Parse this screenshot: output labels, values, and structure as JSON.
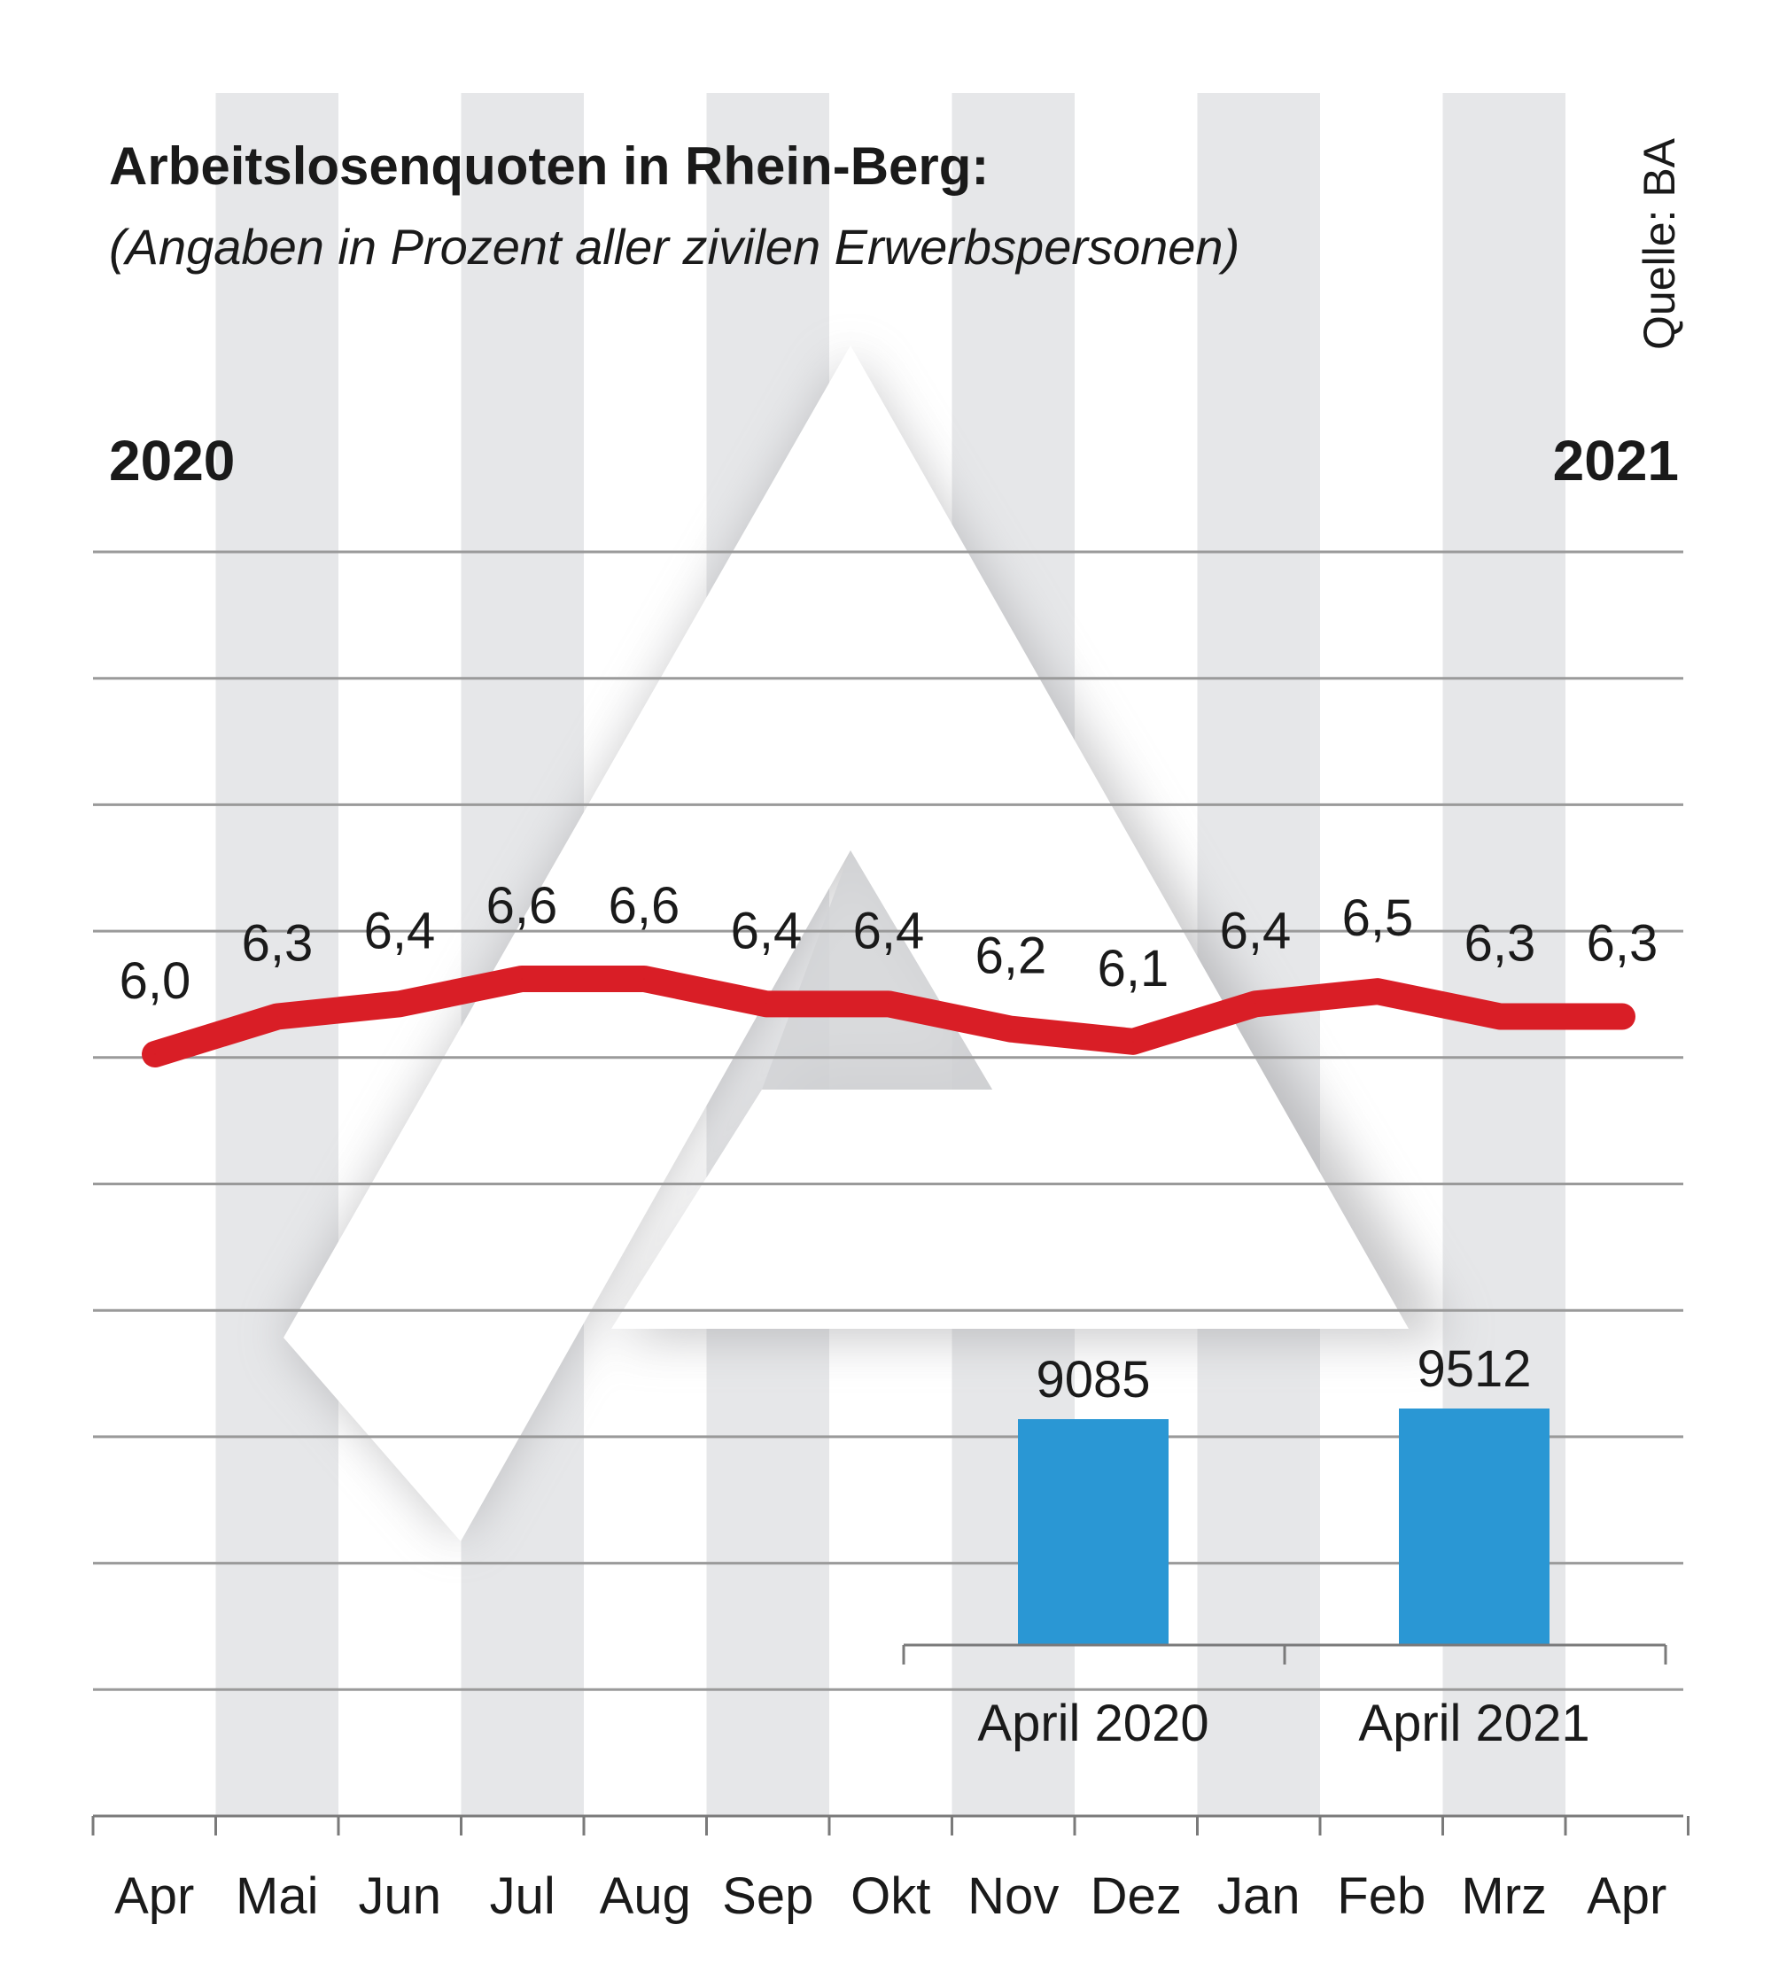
{
  "header": {
    "title": "Arbeitslosenquoten in Rhein-Berg:",
    "subtitle": "(Angaben in Prozent aller zivilen Erwerbspersonen)",
    "source": "Quelle: BA",
    "year_start": "2020",
    "year_end": "2021"
  },
  "colors": {
    "line": "#d91e26",
    "bars": "#2a97d4",
    "stripe": "#e6e7e9",
    "grid": "#9a9a9a"
  },
  "chart_data": [
    {
      "type": "line",
      "title": "Arbeitslosenquoten in Rhein-Berg:",
      "subtitle": "(Angaben in Prozent aller zivilen Erwerbspersonen)",
      "xlabel": "",
      "ylabel": "",
      "categories": [
        "Apr",
        "Mai",
        "Jun",
        "Jul",
        "Aug",
        "Sep",
        "Okt",
        "Nov",
        "Dez",
        "Jan",
        "Feb",
        "Mrz",
        "Apr"
      ],
      "values": [
        6.0,
        6.3,
        6.4,
        6.6,
        6.6,
        6.4,
        6.4,
        6.2,
        6.1,
        6.4,
        6.5,
        6.3,
        6.3
      ],
      "labels": [
        "6,0",
        "6,3",
        "6,4",
        "6,6",
        "6,6",
        "6,4",
        "6,4",
        "6,2",
        "6,1",
        "6,4",
        "6,5",
        "6,3",
        "6,3"
      ],
      "grid": true
    },
    {
      "type": "bar",
      "categories": [
        "April 2020",
        "April 2021"
      ],
      "values": [
        9085,
        9512
      ],
      "labels": [
        "9085",
        "9512"
      ]
    }
  ]
}
